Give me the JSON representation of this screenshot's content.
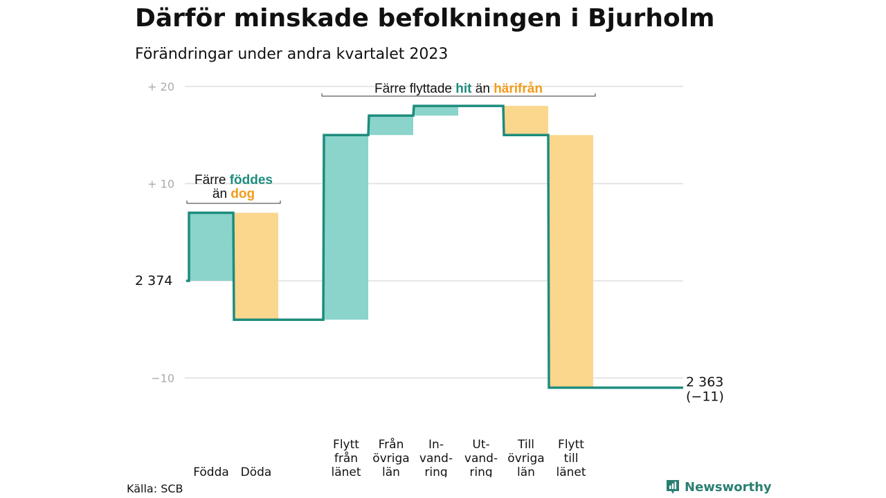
{
  "title": "Därför minskade befolkningen i Bjurholm",
  "subtitle": "Förändringar under andra kvartalet 2023",
  "source": "Källa: SCB",
  "brand": "Newsworthy",
  "colors": {
    "increase": "#8ad4cb",
    "decrease": "#fbd68d",
    "line": "#1d8c7d",
    "increase_text": "#1d8c7d",
    "decrease_text": "#f29c1c",
    "grid": "#dddddd",
    "axis_text": "#aaaaaa"
  },
  "chart_data": {
    "type": "waterfall",
    "start_value": 2374,
    "start_label": "2 374",
    "end_value": 2363,
    "end_label": "2 363",
    "end_change_label": "(−11)",
    "ylim": [
      -12,
      20
    ],
    "y_ticks": [
      {
        "value": 20,
        "label": "+  20"
      },
      {
        "value": 10,
        "label": "+  10"
      },
      {
        "value": 0,
        "label": ""
      },
      {
        "value": -10,
        "label": "−10"
      }
    ],
    "steps": [
      {
        "label_lines": [
          "Födda"
        ],
        "change": 7,
        "kind": "increase"
      },
      {
        "label_lines": [
          "Döda"
        ],
        "change": -11,
        "kind": "decrease"
      },
      {
        "label_lines": [],
        "change": 0,
        "kind": "gap"
      },
      {
        "label_lines": [
          "Flytt",
          "från",
          "länet"
        ],
        "change": 19,
        "kind": "increase"
      },
      {
        "label_lines": [
          "Från",
          "övriga",
          "län"
        ],
        "change": 2,
        "kind": "increase"
      },
      {
        "label_lines": [
          "In-",
          "vand-",
          "ring"
        ],
        "change": 1,
        "kind": "increase"
      },
      {
        "label_lines": [
          "Ut-",
          "vand-",
          "ring"
        ],
        "change": 0,
        "kind": "decrease"
      },
      {
        "label_lines": [
          "Till",
          "övriga",
          "län"
        ],
        "change": -3,
        "kind": "decrease"
      },
      {
        "label_lines": [
          "Flytt",
          "till",
          "länet"
        ],
        "change": -26,
        "kind": "decrease"
      }
    ],
    "annotations": [
      {
        "lines": [
          [
            {
              "text": "Färre ",
              "style": "plain"
            },
            {
              "text": "föddes",
              "style": "increase"
            }
          ],
          [
            {
              "text": "än ",
              "style": "plain"
            },
            {
              "text": "dog",
              "style": "decrease"
            }
          ]
        ],
        "span_steps": [
          0,
          1
        ]
      },
      {
        "lines": [
          [
            {
              "text": "Färre flyttade ",
              "style": "plain"
            },
            {
              "text": "hit",
              "style": "increase"
            },
            {
              "text": "  än ",
              "style": "plain"
            },
            {
              "text": "härifrån",
              "style": "decrease"
            }
          ]
        ],
        "span_steps": [
          3,
          8
        ]
      }
    ]
  }
}
